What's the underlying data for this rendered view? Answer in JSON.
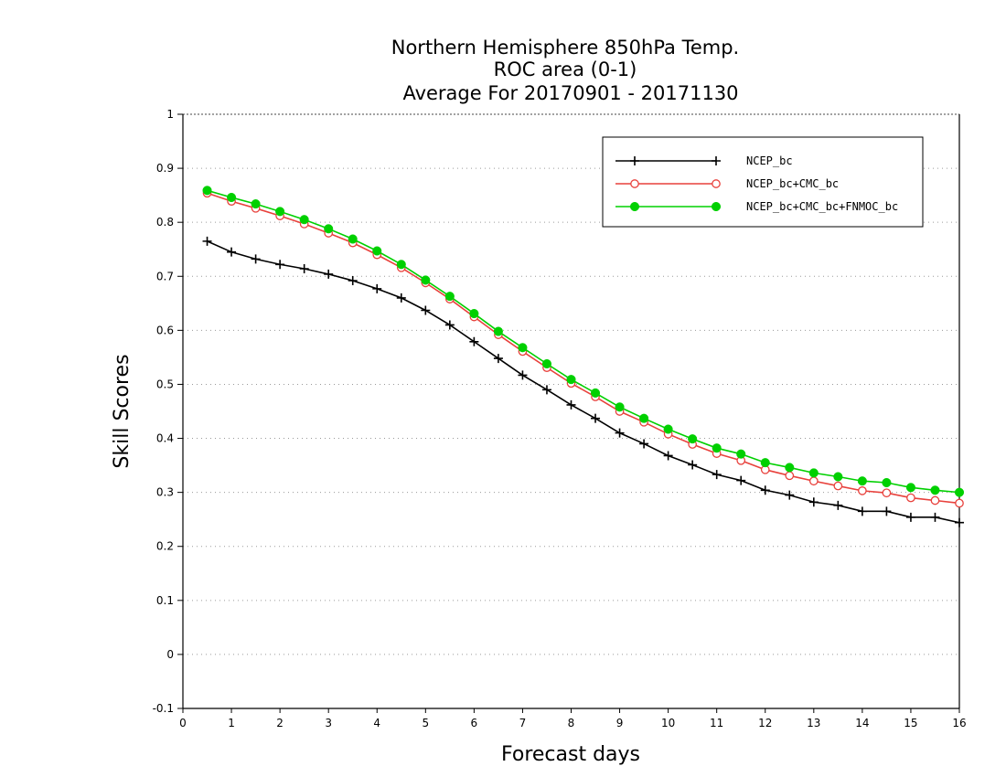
{
  "chart_data": {
    "type": "line",
    "title": [
      "Northern Hemisphere 850hPa Temp.",
      "ROC area (0-1)",
      "Average For 20170901 - 20171130"
    ],
    "xlabel": "Forecast days",
    "ylabel": "Skill Scores",
    "xlim": [
      0,
      16
    ],
    "ylim": [
      -0.1,
      1
    ],
    "xticks": [
      0,
      1,
      2,
      3,
      4,
      5,
      6,
      7,
      8,
      9,
      10,
      11,
      12,
      13,
      14,
      15,
      16
    ],
    "yticks": [
      -0.1,
      0,
      0.1,
      0.2,
      0.3,
      0.4,
      0.5,
      0.6,
      0.7,
      0.8,
      0.9,
      1
    ],
    "ytick_labels": [
      "-0.1",
      "0",
      "0.1",
      "0.2",
      "0.3",
      "0.4",
      "0.5",
      "0.6",
      "0.7",
      "0.8",
      "0.9",
      "1"
    ],
    "grid": "horizontal-dotted",
    "legend_position": "top-right",
    "x": [
      0.5,
      1,
      1.5,
      2,
      2.5,
      3,
      3.5,
      4,
      4.5,
      5,
      5.5,
      6,
      6.5,
      7,
      7.5,
      8,
      8.5,
      9,
      9.5,
      10,
      10.5,
      11,
      11.5,
      12,
      12.5,
      13,
      13.5,
      14,
      14.5,
      15,
      15.5,
      16
    ],
    "series": [
      {
        "name": "NCEP_bc",
        "color": "#000000",
        "marker": "plus",
        "values": [
          0.765,
          0.745,
          0.732,
          0.722,
          0.714,
          0.704,
          0.692,
          0.677,
          0.66,
          0.637,
          0.61,
          0.579,
          0.548,
          0.517,
          0.49,
          0.462,
          0.437,
          0.41,
          0.39,
          0.368,
          0.351,
          0.333,
          0.322,
          0.304,
          0.295,
          0.282,
          0.276,
          0.265,
          0.265,
          0.254,
          0.254,
          0.244
        ]
      },
      {
        "name": "NCEP_bc+CMC_bc",
        "color": "#e8413c",
        "marker": "open-circle",
        "values": [
          0.854,
          0.839,
          0.826,
          0.812,
          0.797,
          0.78,
          0.762,
          0.74,
          0.716,
          0.688,
          0.658,
          0.625,
          0.592,
          0.561,
          0.531,
          0.502,
          0.477,
          0.45,
          0.43,
          0.408,
          0.389,
          0.372,
          0.359,
          0.342,
          0.331,
          0.321,
          0.312,
          0.303,
          0.299,
          0.29,
          0.285,
          0.28
        ]
      },
      {
        "name": "NCEP_bc+CMC_bc+FNMOC_bc",
        "color": "#00d000",
        "marker": "filled-circle",
        "values": [
          0.859,
          0.846,
          0.834,
          0.82,
          0.805,
          0.788,
          0.769,
          0.747,
          0.722,
          0.693,
          0.663,
          0.631,
          0.598,
          0.568,
          0.538,
          0.509,
          0.484,
          0.458,
          0.437,
          0.417,
          0.399,
          0.382,
          0.371,
          0.355,
          0.346,
          0.336,
          0.329,
          0.321,
          0.318,
          0.309,
          0.304,
          0.3
        ]
      }
    ]
  }
}
